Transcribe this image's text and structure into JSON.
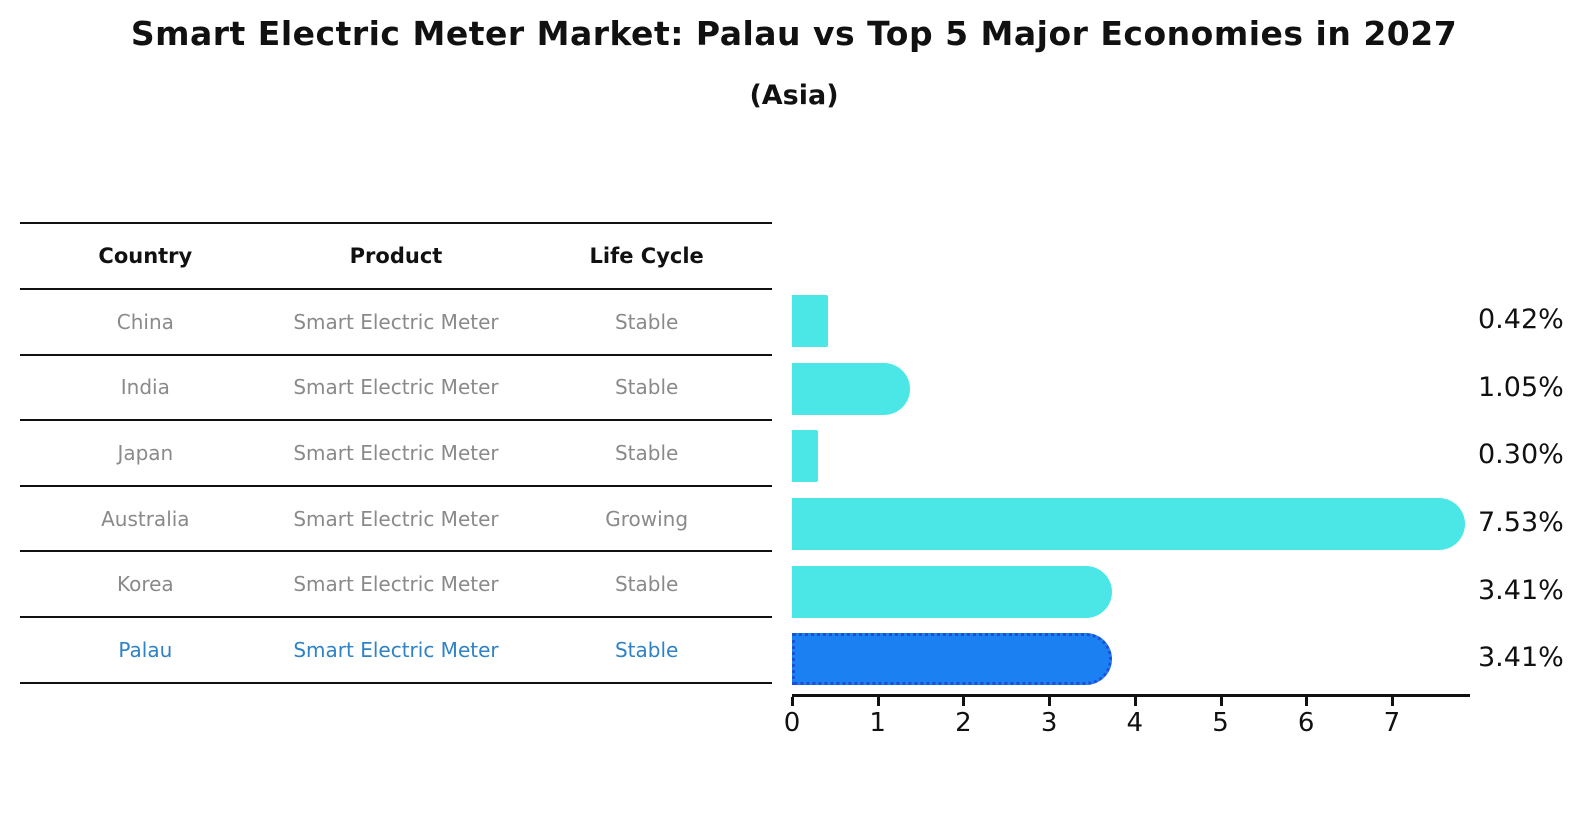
{
  "title": "Smart Electric Meter Market: Palau vs Top 5 Major Economies in 2027",
  "subtitle": "(Asia)",
  "table": {
    "headers": [
      "Country",
      "Product",
      "Life Cycle"
    ],
    "rows": [
      {
        "country": "China",
        "product": "Smart Electric Meter",
        "life_cycle": "Stable",
        "highlighted": false
      },
      {
        "country": "India",
        "product": "Smart Electric Meter",
        "life_cycle": "Stable",
        "highlighted": false
      },
      {
        "country": "Japan",
        "product": "Smart Electric Meter",
        "life_cycle": "Stable",
        "highlighted": false
      },
      {
        "country": "Australia",
        "product": "Smart Electric Meter",
        "life_cycle": "Growing",
        "highlighted": false
      },
      {
        "country": "Korea",
        "product": "Smart Electric Meter",
        "life_cycle": "Stable",
        "highlighted": false
      },
      {
        "country": "Palau",
        "product": "Smart Electric Meter",
        "life_cycle": "Stable",
        "highlighted": true
      }
    ]
  },
  "chart_data": {
    "type": "bar",
    "orientation": "horizontal",
    "title": "Smart Electric Meter Market: Palau vs Top 5 Major Economies in 2027",
    "subtitle": "(Asia)",
    "categories": [
      "China",
      "India",
      "Japan",
      "Australia",
      "Korea",
      "Palau"
    ],
    "values": [
      0.42,
      1.05,
      0.3,
      7.53,
      3.41,
      3.41
    ],
    "value_labels": [
      "0.42%",
      "1.05%",
      "0.30%",
      "7.53%",
      "3.41%",
      "3.41%"
    ],
    "x_ticks": [
      "0",
      "1",
      "2",
      "3",
      "4",
      "5",
      "6",
      "7"
    ],
    "xlim": [
      0,
      7.91
    ],
    "grid": false,
    "legend": "none",
    "highlight_category": "Palau",
    "colors": {
      "bar": "#4be6e6",
      "highlight_bar": "#1b81f2",
      "highlight_border": "#1d4fd8",
      "highlight_text": "#2e82c6",
      "row_text": "#8a8a8a",
      "axis": "#111111"
    }
  }
}
